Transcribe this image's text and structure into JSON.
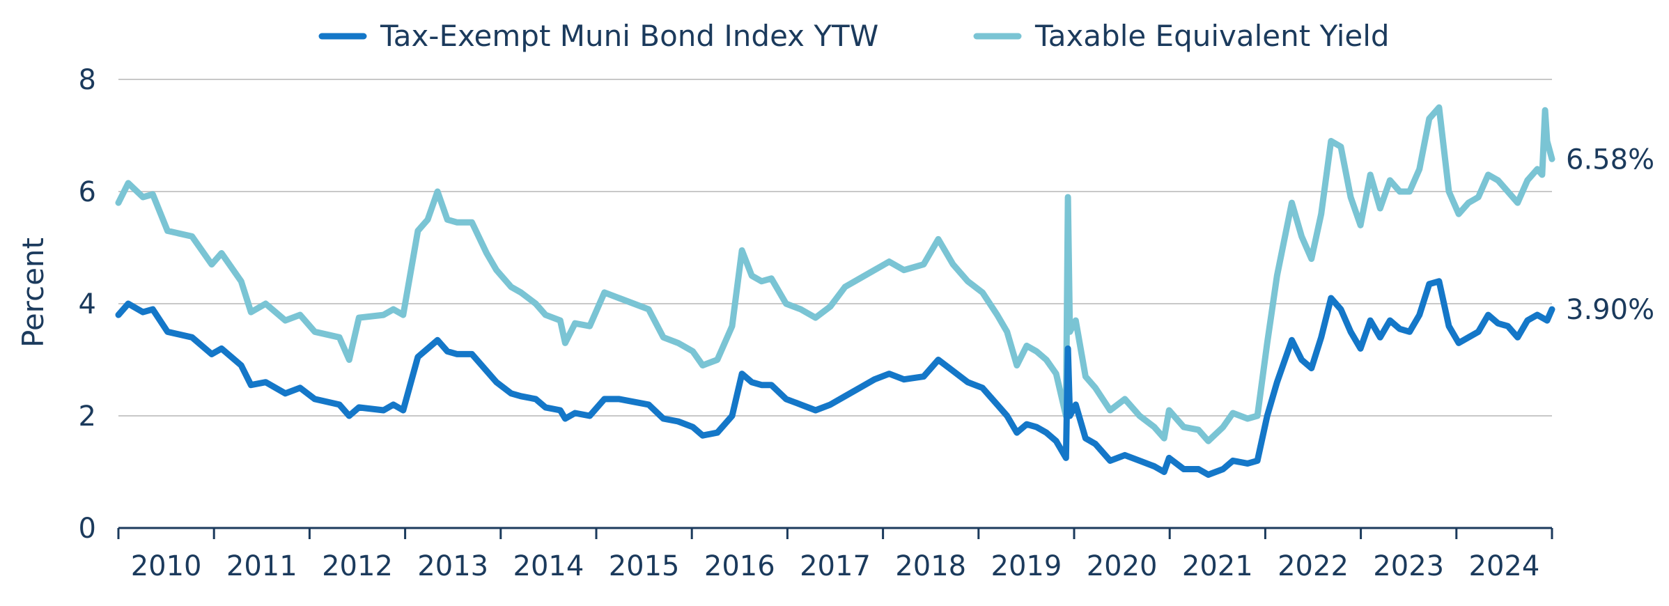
{
  "chart_data": {
    "type": "line",
    "xlabel": "",
    "ylabel": "Percent",
    "ylim": [
      0,
      8
    ],
    "yticks": [
      "0",
      "2",
      "4",
      "6",
      "8"
    ],
    "xlim": [
      2009.5,
      2024.1
    ],
    "xticks": [
      "2010",
      "2011",
      "2012",
      "2013",
      "2014",
      "2015",
      "2016",
      "2017",
      "2018",
      "2019",
      "2020",
      "2021",
      "2022",
      "2023",
      "2024"
    ],
    "grid": "horizontal",
    "legend": "top-center",
    "series": [
      {
        "name": "Tax-Exempt Muni Bond Index YTW",
        "color": "#1477c8",
        "end_label": "3.90%",
        "points": [
          [
            2009.5,
            3.8
          ],
          [
            2009.6,
            4.0
          ],
          [
            2009.75,
            3.85
          ],
          [
            2009.85,
            3.9
          ],
          [
            2010.0,
            3.5
          ],
          [
            2010.25,
            3.4
          ],
          [
            2010.45,
            3.1
          ],
          [
            2010.55,
            3.2
          ],
          [
            2010.75,
            2.9
          ],
          [
            2010.85,
            2.55
          ],
          [
            2011.0,
            2.6
          ],
          [
            2011.2,
            2.4
          ],
          [
            2011.35,
            2.5
          ],
          [
            2011.5,
            2.3
          ],
          [
            2011.75,
            2.2
          ],
          [
            2011.85,
            2.0
          ],
          [
            2011.95,
            2.15
          ],
          [
            2012.2,
            2.1
          ],
          [
            2012.3,
            2.2
          ],
          [
            2012.4,
            2.1
          ],
          [
            2012.55,
            3.05
          ],
          [
            2012.65,
            3.2
          ],
          [
            2012.75,
            3.35
          ],
          [
            2012.85,
            3.15
          ],
          [
            2012.95,
            3.1
          ],
          [
            2013.1,
            3.1
          ],
          [
            2013.25,
            2.8
          ],
          [
            2013.35,
            2.6
          ],
          [
            2013.5,
            2.4
          ],
          [
            2013.6,
            2.35
          ],
          [
            2013.75,
            2.3
          ],
          [
            2013.85,
            2.15
          ],
          [
            2014.0,
            2.1
          ],
          [
            2014.05,
            1.95
          ],
          [
            2014.15,
            2.05
          ],
          [
            2014.3,
            2.0
          ],
          [
            2014.45,
            2.3
          ],
          [
            2014.6,
            2.3
          ],
          [
            2014.75,
            2.25
          ],
          [
            2014.9,
            2.2
          ],
          [
            2015.05,
            1.95
          ],
          [
            2015.2,
            1.9
          ],
          [
            2015.35,
            1.8
          ],
          [
            2015.45,
            1.65
          ],
          [
            2015.6,
            1.7
          ],
          [
            2015.75,
            2.0
          ],
          [
            2015.85,
            2.75
          ],
          [
            2015.95,
            2.6
          ],
          [
            2016.05,
            2.55
          ],
          [
            2016.15,
            2.55
          ],
          [
            2016.3,
            2.3
          ],
          [
            2016.45,
            2.2
          ],
          [
            2016.6,
            2.1
          ],
          [
            2016.75,
            2.2
          ],
          [
            2016.9,
            2.35
          ],
          [
            2017.05,
            2.5
          ],
          [
            2017.2,
            2.65
          ],
          [
            2017.35,
            2.75
          ],
          [
            2017.5,
            2.65
          ],
          [
            2017.7,
            2.7
          ],
          [
            2017.85,
            3.0
          ],
          [
            2018.0,
            2.8
          ],
          [
            2018.15,
            2.6
          ],
          [
            2018.3,
            2.5
          ],
          [
            2018.45,
            2.2
          ],
          [
            2018.55,
            2.0
          ],
          [
            2018.65,
            1.7
          ],
          [
            2018.75,
            1.85
          ],
          [
            2018.85,
            1.8
          ],
          [
            2018.95,
            1.7
          ],
          [
            2019.05,
            1.55
          ],
          [
            2019.15,
            1.25
          ],
          [
            2019.17,
            3.2
          ],
          [
            2019.19,
            2.0
          ],
          [
            2019.25,
            2.2
          ],
          [
            2019.35,
            1.6
          ],
          [
            2019.45,
            1.5
          ],
          [
            2019.6,
            1.2
          ],
          [
            2019.75,
            1.3
          ],
          [
            2019.9,
            1.2
          ],
          [
            2020.05,
            1.1
          ],
          [
            2020.15,
            1.0
          ],
          [
            2020.2,
            1.25
          ],
          [
            2020.35,
            1.05
          ],
          [
            2020.5,
            1.05
          ],
          [
            2020.6,
            0.95
          ],
          [
            2020.75,
            1.05
          ],
          [
            2020.85,
            1.2
          ],
          [
            2021.0,
            1.15
          ],
          [
            2021.1,
            1.2
          ],
          [
            2021.2,
            2.0
          ],
          [
            2021.3,
            2.6
          ],
          [
            2021.45,
            3.35
          ],
          [
            2021.55,
            3.0
          ],
          [
            2021.65,
            2.85
          ],
          [
            2021.75,
            3.4
          ],
          [
            2021.85,
            4.1
          ],
          [
            2021.95,
            3.9
          ],
          [
            2022.05,
            3.5
          ],
          [
            2022.15,
            3.2
          ],
          [
            2022.25,
            3.7
          ],
          [
            2022.35,
            3.4
          ],
          [
            2022.45,
            3.7
          ],
          [
            2022.55,
            3.55
          ],
          [
            2022.65,
            3.5
          ],
          [
            2022.75,
            3.8
          ],
          [
            2022.85,
            4.35
          ],
          [
            2022.95,
            4.4
          ],
          [
            2023.05,
            3.6
          ],
          [
            2023.15,
            3.3
          ],
          [
            2023.25,
            3.4
          ],
          [
            2023.35,
            3.5
          ],
          [
            2023.45,
            3.8
          ],
          [
            2023.55,
            3.65
          ],
          [
            2023.65,
            3.6
          ],
          [
            2023.75,
            3.4
          ],
          [
            2023.85,
            3.7
          ],
          [
            2023.95,
            3.8
          ],
          [
            2024.05,
            3.7
          ],
          [
            2024.1,
            3.9
          ]
        ]
      },
      {
        "name": "Taxable Equivalent Yield",
        "color": "#7ac4d4",
        "end_label": "6.58%",
        "points": [
          [
            2009.5,
            5.8
          ],
          [
            2009.6,
            6.15
          ],
          [
            2009.75,
            5.9
          ],
          [
            2009.85,
            5.95
          ],
          [
            2010.0,
            5.3
          ],
          [
            2010.25,
            5.2
          ],
          [
            2010.45,
            4.7
          ],
          [
            2010.55,
            4.9
          ],
          [
            2010.75,
            4.4
          ],
          [
            2010.85,
            3.85
          ],
          [
            2011.0,
            4.0
          ],
          [
            2011.2,
            3.7
          ],
          [
            2011.35,
            3.8
          ],
          [
            2011.5,
            3.5
          ],
          [
            2011.75,
            3.4
          ],
          [
            2011.85,
            3.0
          ],
          [
            2011.95,
            3.75
          ],
          [
            2012.2,
            3.8
          ],
          [
            2012.3,
            3.9
          ],
          [
            2012.4,
            3.8
          ],
          [
            2012.55,
            5.3
          ],
          [
            2012.65,
            5.5
          ],
          [
            2012.75,
            6.0
          ],
          [
            2012.85,
            5.5
          ],
          [
            2012.95,
            5.45
          ],
          [
            2013.1,
            5.45
          ],
          [
            2013.25,
            4.9
          ],
          [
            2013.35,
            4.6
          ],
          [
            2013.5,
            4.3
          ],
          [
            2013.6,
            4.2
          ],
          [
            2013.75,
            4.0
          ],
          [
            2013.85,
            3.8
          ],
          [
            2014.0,
            3.7
          ],
          [
            2014.05,
            3.3
          ],
          [
            2014.15,
            3.65
          ],
          [
            2014.3,
            3.6
          ],
          [
            2014.45,
            4.2
          ],
          [
            2014.6,
            4.1
          ],
          [
            2014.75,
            4.0
          ],
          [
            2014.9,
            3.9
          ],
          [
            2015.05,
            3.4
          ],
          [
            2015.2,
            3.3
          ],
          [
            2015.35,
            3.15
          ],
          [
            2015.45,
            2.9
          ],
          [
            2015.6,
            3.0
          ],
          [
            2015.75,
            3.6
          ],
          [
            2015.85,
            4.95
          ],
          [
            2015.95,
            4.5
          ],
          [
            2016.05,
            4.4
          ],
          [
            2016.15,
            4.45
          ],
          [
            2016.3,
            4.0
          ],
          [
            2016.45,
            3.9
          ],
          [
            2016.6,
            3.75
          ],
          [
            2016.75,
            3.95
          ],
          [
            2016.9,
            4.3
          ],
          [
            2017.05,
            4.45
          ],
          [
            2017.2,
            4.6
          ],
          [
            2017.35,
            4.75
          ],
          [
            2017.5,
            4.6
          ],
          [
            2017.7,
            4.7
          ],
          [
            2017.85,
            5.15
          ],
          [
            2018.0,
            4.7
          ],
          [
            2018.15,
            4.4
          ],
          [
            2018.3,
            4.2
          ],
          [
            2018.45,
            3.8
          ],
          [
            2018.55,
            3.5
          ],
          [
            2018.65,
            2.9
          ],
          [
            2018.75,
            3.25
          ],
          [
            2018.85,
            3.15
          ],
          [
            2018.95,
            3.0
          ],
          [
            2019.05,
            2.75
          ],
          [
            2019.15,
            2.0
          ],
          [
            2019.17,
            5.9
          ],
          [
            2019.19,
            3.5
          ],
          [
            2019.25,
            3.7
          ],
          [
            2019.35,
            2.7
          ],
          [
            2019.45,
            2.5
          ],
          [
            2019.6,
            2.1
          ],
          [
            2019.75,
            2.3
          ],
          [
            2019.9,
            2.0
          ],
          [
            2020.05,
            1.8
          ],
          [
            2020.15,
            1.6
          ],
          [
            2020.2,
            2.1
          ],
          [
            2020.35,
            1.8
          ],
          [
            2020.5,
            1.75
          ],
          [
            2020.6,
            1.55
          ],
          [
            2020.75,
            1.8
          ],
          [
            2020.85,
            2.05
          ],
          [
            2021.0,
            1.95
          ],
          [
            2021.1,
            2.0
          ],
          [
            2021.2,
            3.3
          ],
          [
            2021.3,
            4.5
          ],
          [
            2021.45,
            5.8
          ],
          [
            2021.55,
            5.2
          ],
          [
            2021.65,
            4.8
          ],
          [
            2021.75,
            5.6
          ],
          [
            2021.85,
            6.9
          ],
          [
            2021.95,
            6.8
          ],
          [
            2022.05,
            5.9
          ],
          [
            2022.15,
            5.4
          ],
          [
            2022.25,
            6.3
          ],
          [
            2022.35,
            5.7
          ],
          [
            2022.45,
            6.2
          ],
          [
            2022.55,
            6.0
          ],
          [
            2022.65,
            6.0
          ],
          [
            2022.75,
            6.4
          ],
          [
            2022.85,
            7.3
          ],
          [
            2022.95,
            7.5
          ],
          [
            2023.05,
            6.0
          ],
          [
            2023.15,
            5.6
          ],
          [
            2023.25,
            5.8
          ],
          [
            2023.35,
            5.9
          ],
          [
            2023.45,
            6.3
          ],
          [
            2023.55,
            6.2
          ],
          [
            2023.65,
            6.0
          ],
          [
            2023.75,
            5.8
          ],
          [
            2023.85,
            6.2
          ],
          [
            2023.95,
            6.4
          ],
          [
            2024.0,
            6.3
          ],
          [
            2024.03,
            7.45
          ],
          [
            2024.05,
            6.9
          ],
          [
            2024.1,
            6.58
          ]
        ]
      }
    ]
  }
}
